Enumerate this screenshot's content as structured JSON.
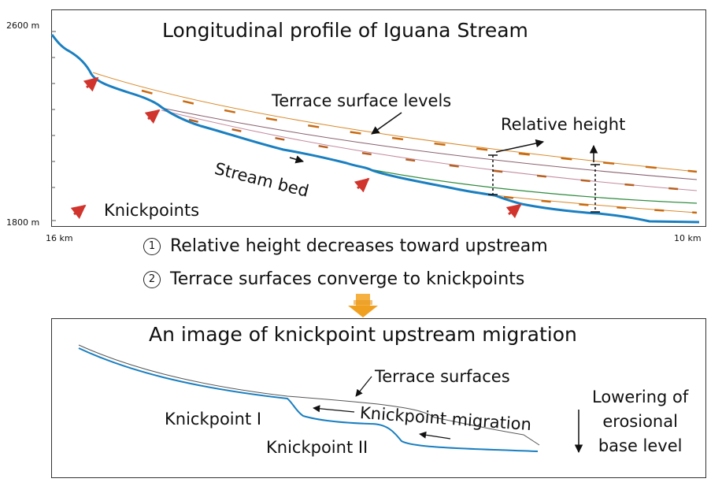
{
  "top_panel": {
    "title": "Longitudinal profile of Iguana Stream",
    "y_top_label": "2600 m",
    "y_bottom_label": "1800 m",
    "x_left_label": "16 km",
    "x_right_label": "10 km",
    "terrace_label": "Terrace surface levels",
    "relative_height_label": "Relative height",
    "stream_bed_label": "Stream bed",
    "knickpoints_legend": "Knickpoints"
  },
  "statements": [
    {
      "number": "1",
      "text": "Relative height decreases toward upstream"
    },
    {
      "number": "2",
      "text": "Terrace surfaces converge to knickpoints"
    }
  ],
  "bottom_panel": {
    "title": "An image of knickpoint upstream migration",
    "terrace_surfaces_label": "Terrace surfaces",
    "knickpoint_i_label": "Knickpoint I",
    "knickpoint_ii_label": "Knickpoint II",
    "migration_label": "Knickpoint migration",
    "lowering_label_1": "Lowering of",
    "lowering_label_2": "erosional",
    "lowering_label_3": "base level"
  },
  "colors": {
    "stream": "#1a7fc0",
    "terrace_orange": "#d98a2a",
    "terrace_green": "#2e8b3d",
    "terrace_pink": "#c48aa0",
    "knickpoint_arrow": "#d0342c",
    "transition_arrow": "#f0a020"
  }
}
